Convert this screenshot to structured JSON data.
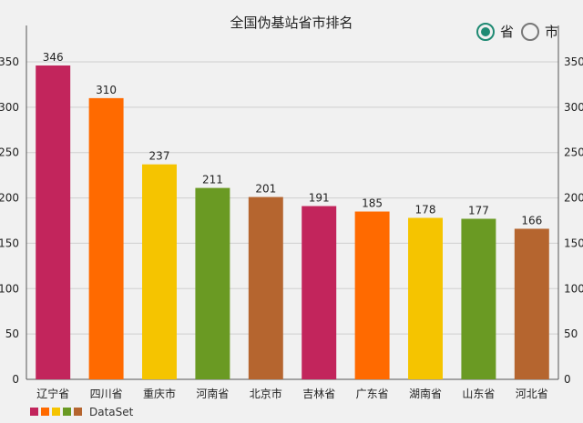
{
  "chart_data": {
    "type": "bar",
    "title": "全国伪基站省市排名",
    "categories": [
      "辽宁省",
      "四川省",
      "重庆市",
      "河南省",
      "北京市",
      "吉林省",
      "广东省",
      "湖南省",
      "山东省",
      "河北省"
    ],
    "values": [
      346,
      310,
      237,
      211,
      201,
      191,
      185,
      178,
      177,
      166
    ],
    "colors": [
      "#c2255c",
      "#ff6a00",
      "#f5c400",
      "#6a9a23",
      "#b5652f",
      "#c2255c",
      "#ff6a00",
      "#f5c400",
      "#6a9a23",
      "#b5652f"
    ],
    "ylim": [
      0,
      350
    ],
    "yticks": [
      0,
      50,
      100,
      150,
      200,
      250,
      300,
      350
    ],
    "grid": true,
    "legend": {
      "label": "DataSet",
      "position": "bottom-left",
      "swatches": [
        "#c2255c",
        "#ff6a00",
        "#f5c400",
        "#6a9a23",
        "#b5652f"
      ]
    }
  },
  "radio": {
    "options": [
      {
        "label": "省",
        "checked": true
      },
      {
        "label": "市",
        "checked": false
      }
    ]
  }
}
